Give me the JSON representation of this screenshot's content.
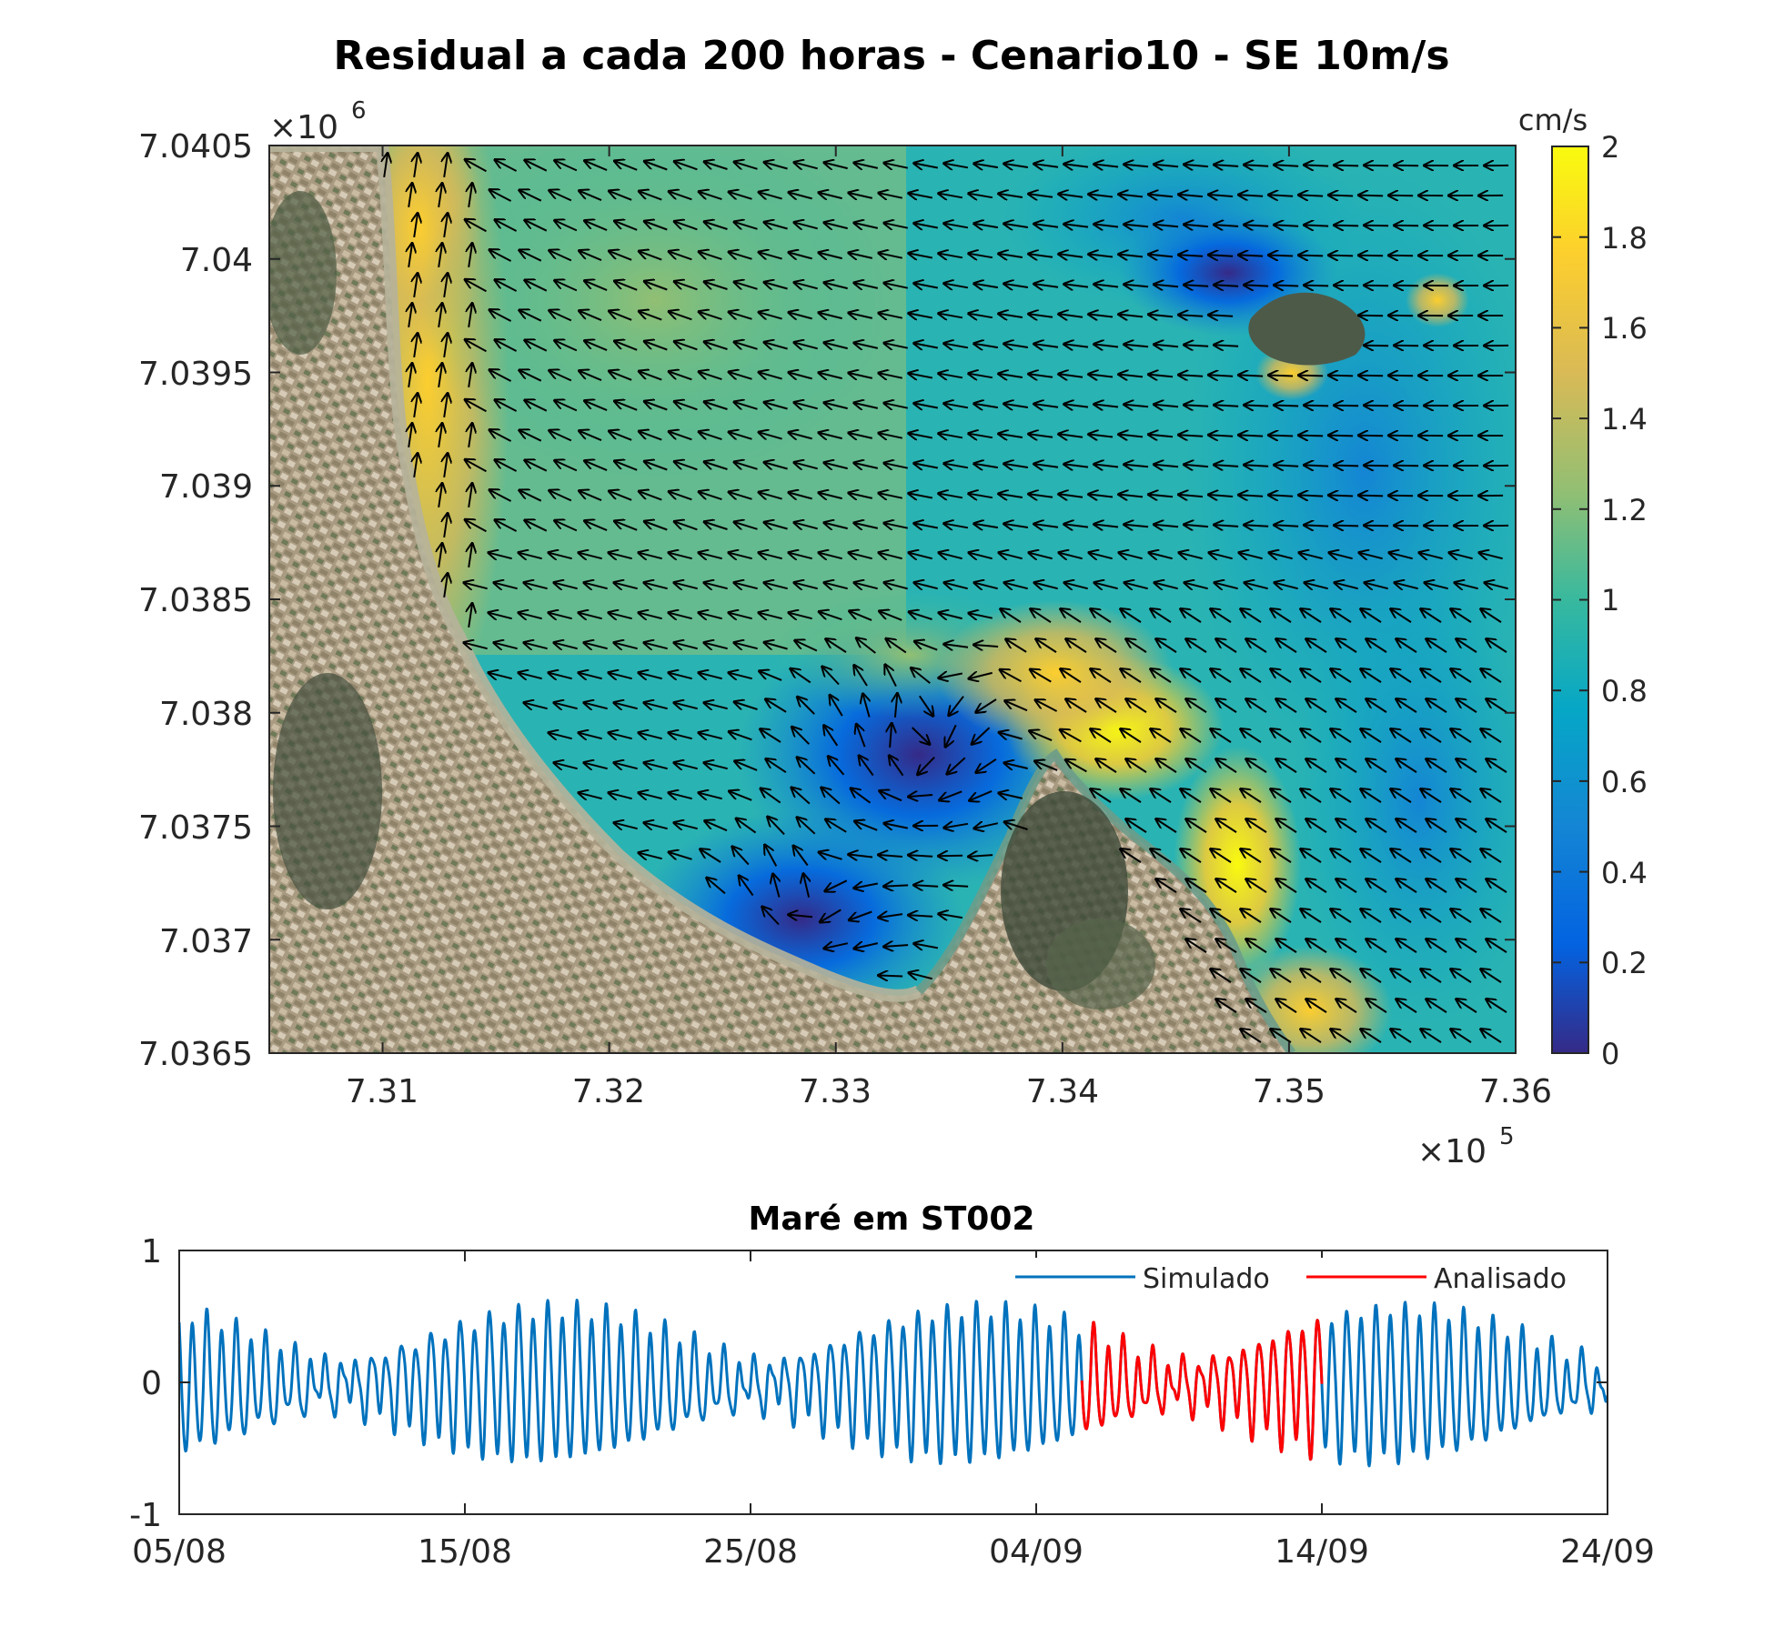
{
  "chart_data": [
    {
      "type": "heatmap",
      "title": "Residual a cada 200 horas  - Cenario10 - SE 10m/s",
      "x_tick_labels": [
        "7.31",
        "7.32",
        "7.33",
        "7.34",
        "7.35",
        "7.36"
      ],
      "x_ticks": [
        731000,
        732000,
        733000,
        734000,
        735000,
        736000
      ],
      "xlim": [
        730500,
        736000
      ],
      "x_exponent_label": "×10",
      "x_exponent": "5",
      "y_tick_labels": [
        "7.0405",
        "7.04",
        "7.0395",
        "7.039",
        "7.0385",
        "7.038",
        "7.0375",
        "7.037",
        "7.0365"
      ],
      "y_ticks": [
        7040500,
        7040000,
        7039500,
        7039000,
        7038500,
        7038000,
        7037500,
        7037000,
        7036500
      ],
      "ylim": [
        7036500,
        7040500
      ],
      "y_exponent_label": "×10",
      "y_exponent": "6",
      "colorbar": {
        "label": "cm/s",
        "range": [
          0,
          2
        ],
        "tick_labels": [
          "0",
          "0.2",
          "0.4",
          "0.6",
          "0.8",
          "1",
          "1.2",
          "1.4",
          "1.6",
          "1.8",
          "2"
        ],
        "colormap": "parula",
        "colors": [
          "#352a87",
          "#0363e1",
          "#1485d4",
          "#06a7c6",
          "#38b99e",
          "#92bf73",
          "#d9ba56",
          "#fcce2e",
          "#f9fb0e"
        ]
      },
      "background": "satellite image of coastline (land left and bottom, islands upper-right and bottom-center)",
      "vectors": "black residual current arrows",
      "speed_hotspots_cm_s": [
        {
          "x": 731300,
          "y": 7040200,
          "speed": 1.7
        },
        {
          "x": 734300,
          "y": 7037900,
          "speed": 2.0
        },
        {
          "x": 734900,
          "y": 7037300,
          "speed": 2.0
        },
        {
          "x": 733400,
          "y": 7037700,
          "speed": 0.1
        },
        {
          "x": 732900,
          "y": 7037100,
          "speed": 0.1
        },
        {
          "x": 734700,
          "y": 7039900,
          "speed": 0.2
        }
      ]
    },
    {
      "type": "line",
      "title": "Maré em ST002",
      "x_tick_labels": [
        "05/08",
        "15/08",
        "25/08",
        "04/09",
        "14/09",
        "24/09"
      ],
      "x_day_range": [
        0,
        50
      ],
      "y_tick_labels": [
        "1",
        "0",
        "-1"
      ],
      "ylim": [
        -1,
        1
      ],
      "legend_position": "top-right",
      "series": [
        {
          "name": "Simulado",
          "color": "#0072bd",
          "x_range_days": [
            0,
            50
          ],
          "amplitude_range": [
            0.1,
            0.65
          ],
          "mean": -0.02
        },
        {
          "name": "Analisado",
          "color": "#ff0000",
          "x_range_days": [
            31.6,
            40
          ],
          "amplitude_range": [
            0.1,
            0.6
          ],
          "mean": -0.02
        }
      ]
    }
  ]
}
